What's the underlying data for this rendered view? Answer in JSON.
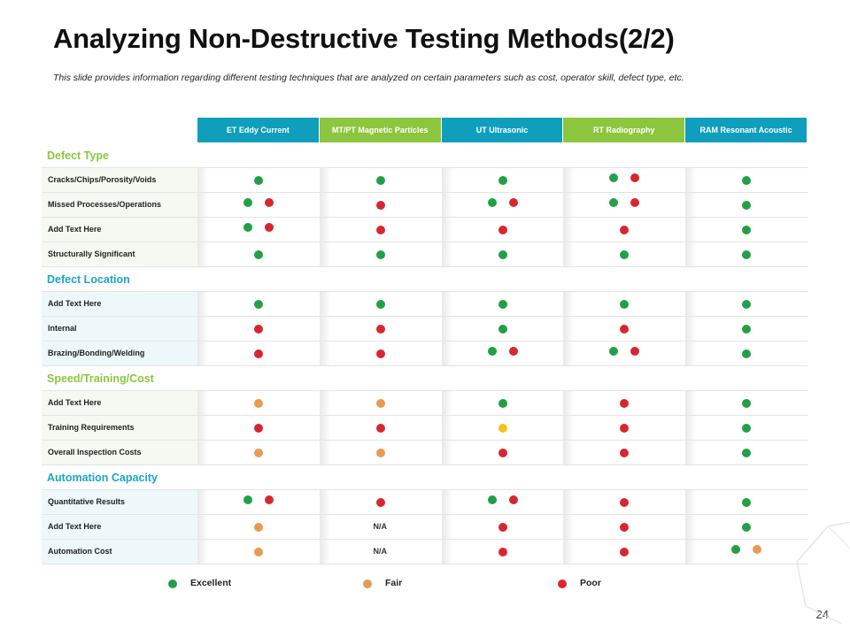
{
  "title": "Analyzing Non-Destructive Testing Methods(2/2)",
  "subtitle": "This slide provides information regarding different testing techniques that are analyzed on certain parameters such as cost, operator skill, defect type, etc.",
  "colors": {
    "teal": "#0f9fbd",
    "green_header": "#8cc63e",
    "excellent": "#22a046",
    "fair": "#e99a52",
    "poor": "#d8262f",
    "yellow": "#f2c318",
    "section_teal": "#1ca6c4",
    "section_green": "#8cc63e"
  },
  "columns": [
    {
      "label": "ET Eddy Current",
      "color": "teal"
    },
    {
      "label": "MT/PT Magnetic Particles",
      "color": "green_header"
    },
    {
      "label": "UT Ultrasonic",
      "color": "teal"
    },
    {
      "label": "RT Radiography",
      "color": "green_header"
    },
    {
      "label": "RAM Resonant Acoustic",
      "color": "teal"
    }
  ],
  "sections": [
    {
      "title": "Defect Type",
      "color": "section_green",
      "rows": [
        {
          "label": "Cracks/Chips/Porosity/Voids",
          "cells": [
            [
              "excellent"
            ],
            [
              "excellent"
            ],
            [
              "excellent"
            ],
            [
              "excellent",
              "poor"
            ],
            [
              "excellent"
            ]
          ]
        },
        {
          "label": "Missed Processes/Operations",
          "cells": [
            [
              "excellent",
              "poor"
            ],
            [
              "poor"
            ],
            [
              "excellent",
              "poor"
            ],
            [
              "excellent",
              "poor"
            ],
            [
              "excellent"
            ]
          ]
        },
        {
          "label": "Add Text Here",
          "cells": [
            [
              "excellent",
              "poor"
            ],
            [
              "poor"
            ],
            [
              "poor"
            ],
            [
              "poor"
            ],
            [
              "excellent"
            ]
          ]
        },
        {
          "label": "Structurally Significant",
          "cells": [
            [
              "excellent"
            ],
            [
              "excellent"
            ],
            [
              "excellent"
            ],
            [
              "excellent"
            ],
            [
              "excellent"
            ]
          ]
        }
      ]
    },
    {
      "title": "Defect Location",
      "color": "section_teal",
      "rows": [
        {
          "label": "Add Text Here",
          "cells": [
            [
              "excellent"
            ],
            [
              "excellent"
            ],
            [
              "excellent"
            ],
            [
              "excellent"
            ],
            [
              "excellent"
            ]
          ]
        },
        {
          "label": "Internal",
          "cells": [
            [
              "poor"
            ],
            [
              "poor"
            ],
            [
              "excellent"
            ],
            [
              "poor"
            ],
            [
              "excellent"
            ]
          ]
        },
        {
          "label": "Brazing/Bonding/Welding",
          "cells": [
            [
              "poor"
            ],
            [
              "poor"
            ],
            [
              "excellent",
              "poor"
            ],
            [
              "excellent",
              "poor"
            ],
            [
              "excellent"
            ]
          ]
        }
      ]
    },
    {
      "title": "Speed/Training/Cost",
      "color": "section_green",
      "rows": [
        {
          "label": "Add Text Here",
          "cells": [
            [
              "fair"
            ],
            [
              "fair"
            ],
            [
              "excellent"
            ],
            [
              "poor"
            ],
            [
              "excellent"
            ]
          ]
        },
        {
          "label": "Training Requirements",
          "cells": [
            [
              "poor"
            ],
            [
              "poor"
            ],
            [
              "yellow"
            ],
            [
              "poor"
            ],
            [
              "excellent"
            ]
          ]
        },
        {
          "label": "Overall Inspection Costs",
          "cells": [
            [
              "fair"
            ],
            [
              "fair"
            ],
            [
              "poor"
            ],
            [
              "poor"
            ],
            [
              "excellent"
            ]
          ]
        }
      ]
    },
    {
      "title": "Automation Capacity",
      "color": "section_teal",
      "rows": [
        {
          "label": "Quantitative Results",
          "cells": [
            [
              "excellent",
              "poor"
            ],
            [
              "poor"
            ],
            [
              "excellent",
              "poor"
            ],
            [
              "poor"
            ],
            [
              "excellent"
            ]
          ]
        },
        {
          "label": "Add Text Here",
          "cells": [
            [
              "fair"
            ],
            "N/A",
            [
              "poor"
            ],
            [
              "poor"
            ],
            [
              "excellent"
            ]
          ]
        },
        {
          "label": "Automation Cost",
          "cells": [
            [
              "fair"
            ],
            "N/A",
            [
              "poor"
            ],
            [
              "poor"
            ],
            [
              "excellent",
              "fair"
            ]
          ]
        }
      ]
    }
  ],
  "legend": [
    {
      "label": "Excellent",
      "color": "excellent"
    },
    {
      "label": "Fair",
      "color": "fair"
    },
    {
      "label": "Poor",
      "color": "poor"
    }
  ],
  "page_number": "24"
}
